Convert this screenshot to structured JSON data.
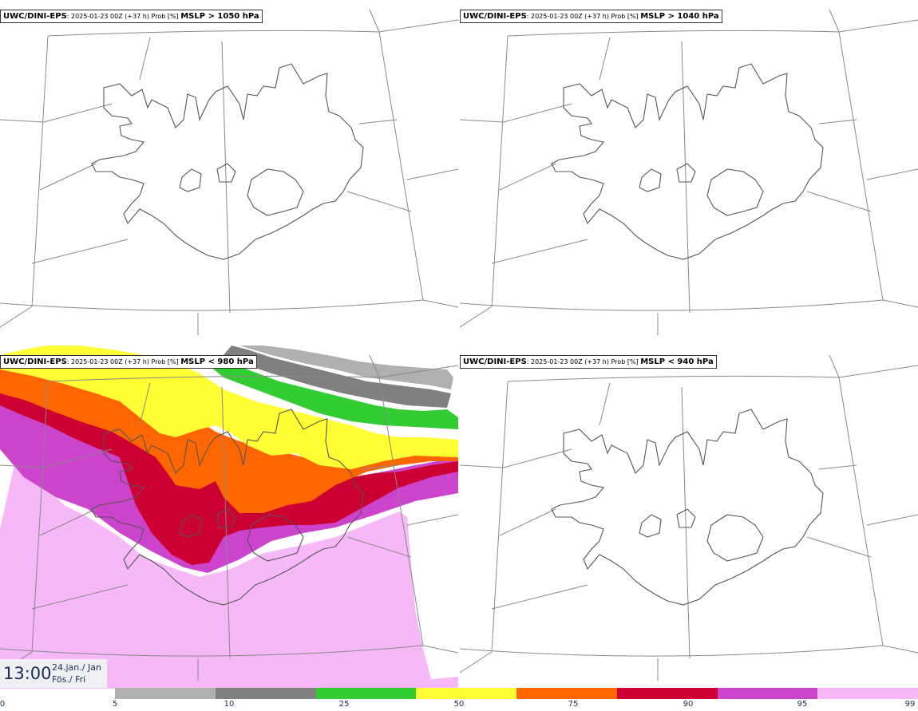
{
  "panels": [
    {
      "model": "UWC/DINI-EPS",
      "meta": ": 2025-01-23 00Z (+37 h) Prob [%] ",
      "threshold": "MSLP > 1050 hPa"
    },
    {
      "model": "UWC/DINI-EPS",
      "meta": ": 2025-01-23 00Z (+37 h) Prob [%] ",
      "threshold": "MSLP > 1040 hPa"
    },
    {
      "model": "UWC/DINI-EPS",
      "meta": ": 2025-01-23 00Z (+37 h) Prob [%] ",
      "threshold": "MSLP < 980 hPa"
    },
    {
      "model": "UWC/DINI-EPS",
      "meta": ": 2025-01-23 00Z (+37 h) Prob [%] ",
      "threshold": "MSLP < 940 hPa"
    }
  ],
  "time": {
    "clock": "13:00",
    "date_line": "24.jan./ Jan",
    "day_line": "Fös./ Fri"
  },
  "legend": {
    "ticks": [
      "0",
      "5",
      "10",
      "25",
      "50",
      "75",
      "90",
      "95",
      "99"
    ],
    "colors": [
      "#b0b0b0",
      "#808080",
      "#33cc33",
      "#ffff33",
      "#ff6600",
      "#cc0033",
      "#cc44cc",
      "#f7b8f7"
    ]
  }
}
